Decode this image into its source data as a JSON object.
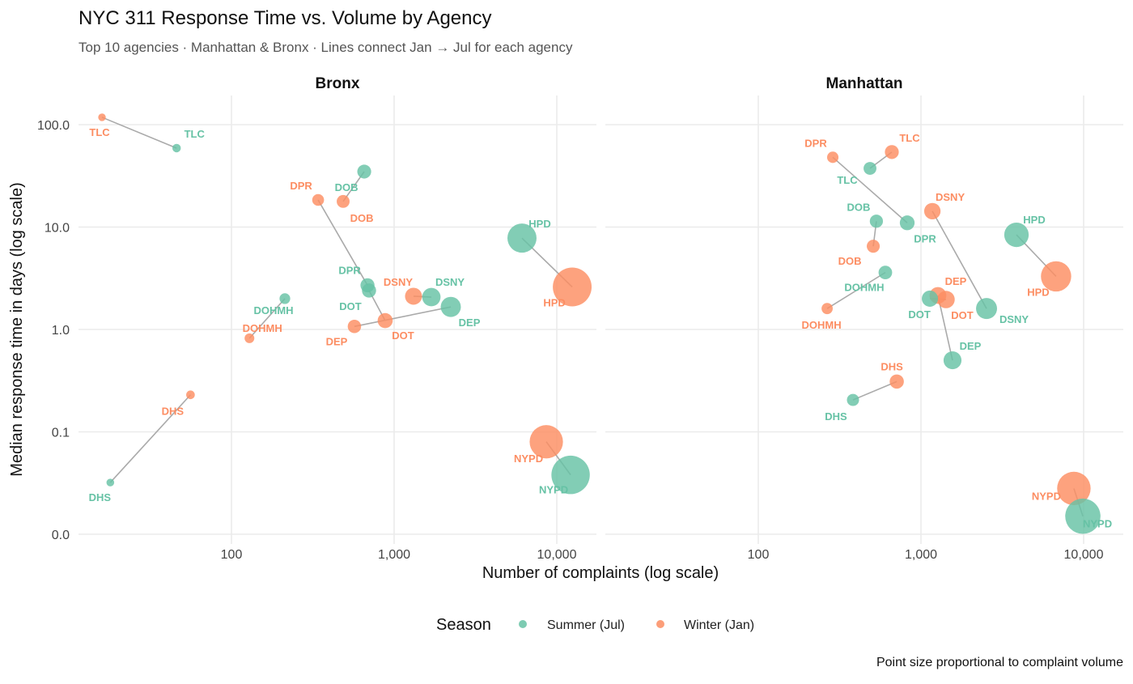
{
  "chart_data": {
    "type": "scatter",
    "title": "NYC 311 Response Time vs. Volume by Agency",
    "subtitle": "Top 10 agencies · Manhattan & Bronx · Lines connect Jan → Jul for each agency",
    "xlabel": "Number of complaints (log scale)",
    "ylabel": "Median response time in days (log scale)",
    "caption": "Point size proportional to complaint volume",
    "x_scale": "log10",
    "y_scale": "log10",
    "xlim": [
      11,
      15000
    ],
    "ylim": [
      0.0085,
      150
    ],
    "x_ticks": [
      100,
      1000,
      10000
    ],
    "x_tick_labels": [
      "100",
      "1,000",
      "10,000"
    ],
    "y_ticks": [
      0.01,
      0.1,
      1,
      10,
      100
    ],
    "y_tick_labels": [
      "0.0",
      "0.1",
      "1.0",
      "10.0",
      "100.0"
    ],
    "grid": true,
    "legend": {
      "title": "Season",
      "placement": "bottom",
      "entries": [
        {
          "label": "Summer (Jul)",
          "color": "#66c2a5"
        },
        {
          "label": "Winter (Jan)",
          "color": "#fc8d62"
        }
      ]
    },
    "line_color": "#aaaaaa",
    "panels": [
      {
        "name": "Bronx",
        "points": [
          {
            "agency": "TLC",
            "winter": [
              16,
              118
            ],
            "summer": [
              46,
              59
            ]
          },
          {
            "agency": "DPR",
            "winter": [
              341,
              18.4
            ],
            "summer": [
              686,
              2.7
            ]
          },
          {
            "agency": "DOB",
            "winter": [
              486,
              17.8
            ],
            "summer": [
              655,
              34.8
            ]
          },
          {
            "agency": "DOHMH",
            "winter": [
              129,
              0.82
            ],
            "summer": [
              213,
              2.0
            ]
          },
          {
            "agency": "DHS",
            "winter": [
              56,
              0.23
            ],
            "summer": [
              18,
              0.032
            ]
          },
          {
            "agency": "DSNY",
            "winter": [
              1316,
              2.11
            ],
            "summer": [
              1694,
              2.07
            ]
          },
          {
            "agency": "DOT",
            "winter": [
              881,
              1.22
            ],
            "summer": [
              701,
              2.4
            ]
          },
          {
            "agency": "DEP",
            "winter": [
              570,
              1.07
            ],
            "summer": [
              2230,
              1.66
            ]
          },
          {
            "agency": "HPD",
            "winter": [
              12440,
              2.6
            ],
            "summer": [
              6110,
              7.8
            ]
          },
          {
            "agency": "NYPD",
            "winter": [
              8620,
              0.08
            ],
            "summer": [
              12160,
              0.038
            ]
          }
        ]
      },
      {
        "name": "Manhattan",
        "points": [
          {
            "agency": "TLC",
            "winter": [
              662,
              54
            ],
            "summer": [
              486,
              37.4
            ]
          },
          {
            "agency": "DPR",
            "winter": [
              287,
              48
            ],
            "summer": [
              823,
              11.0
            ]
          },
          {
            "agency": "DOB",
            "winter": [
              509,
              6.5
            ],
            "summer": [
              532,
              11.4
            ]
          },
          {
            "agency": "DSNY",
            "winter": [
              1175,
              14.3
            ],
            "summer": [
              2530,
              1.6
            ]
          },
          {
            "agency": "HPD",
            "winter": [
              6770,
              3.3
            ],
            "summer": [
              3865,
              8.4
            ]
          },
          {
            "agency": "DOHMH",
            "winter": [
              265,
              1.6
            ],
            "summer": [
              604,
              3.6
            ]
          },
          {
            "agency": "DOT",
            "winter": [
              1426,
              1.96
            ],
            "summer": [
              1135,
              2.0
            ]
          },
          {
            "agency": "DEP",
            "winter": [
              1271,
              2.15
            ],
            "summer": [
              1563,
              0.5
            ]
          },
          {
            "agency": "DHS",
            "winter": [
              710,
              0.31
            ],
            "summer": [
              382,
              0.205
            ]
          },
          {
            "agency": "NYPD",
            "winter": [
              8710,
              0.028
            ],
            "summer": [
              9890,
              0.015
            ]
          }
        ]
      }
    ]
  }
}
